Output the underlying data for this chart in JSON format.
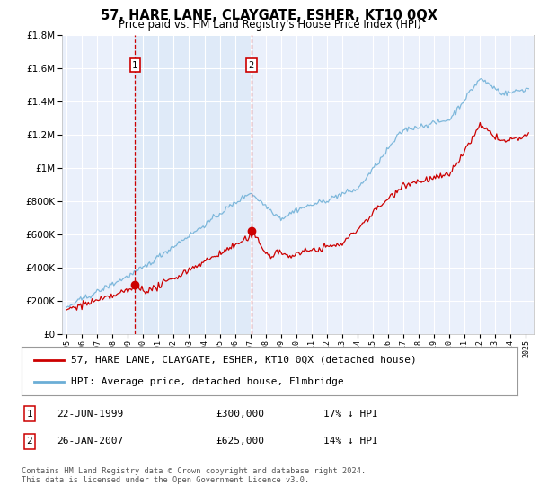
{
  "title": "57, HARE LANE, CLAYGATE, ESHER, KT10 0QX",
  "subtitle": "Price paid vs. HM Land Registry's House Price Index (HPI)",
  "footer": "Contains HM Land Registry data © Crown copyright and database right 2024.\nThis data is licensed under the Open Government Licence v3.0.",
  "legend_line1": "57, HARE LANE, CLAYGATE, ESHER, KT10 0QX (detached house)",
  "legend_line2": "HPI: Average price, detached house, Elmbridge",
  "sale1_label": "1",
  "sale1_date": "22-JUN-1999",
  "sale1_price": "£300,000",
  "sale1_hpi": "17% ↓ HPI",
  "sale1_year": 1999.47,
  "sale1_value": 300000,
  "sale2_label": "2",
  "sale2_date": "26-JAN-2007",
  "sale2_price": "£625,000",
  "sale2_hpi": "14% ↓ HPI",
  "sale2_year": 2007.07,
  "sale2_value": 625000,
  "hpi_color": "#6baed6",
  "price_color": "#cc0000",
  "vline_color": "#cc0000",
  "fill_between_vlines_color": "#cce0f5",
  "plot_bg_color": "#eaf0fb",
  "ylim": [
    0,
    1800000
  ],
  "xlim_start": 1994.7,
  "xlim_end": 2025.5
}
